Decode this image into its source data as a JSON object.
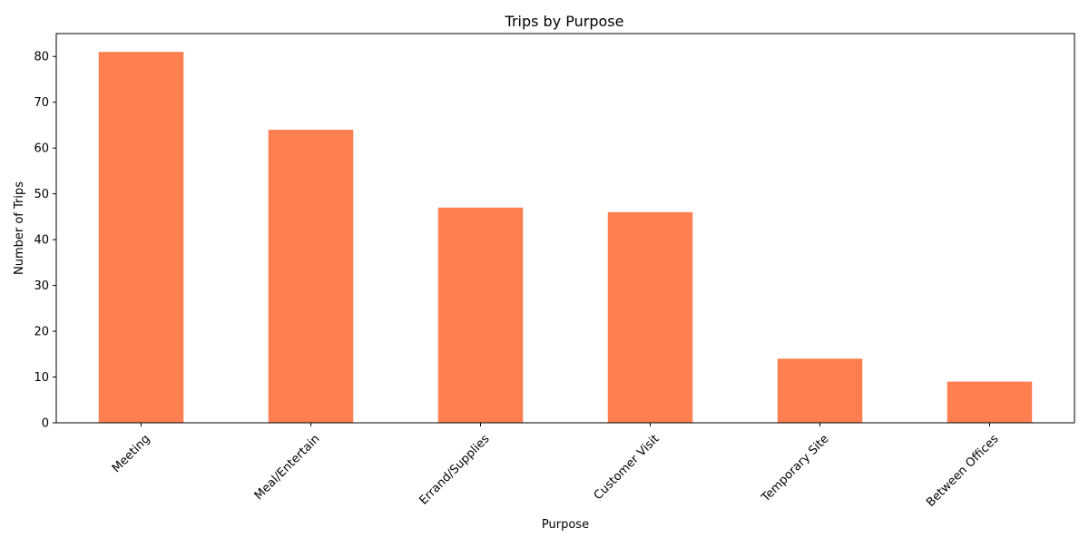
{
  "chart_data": {
    "type": "bar",
    "title": "Trips by Purpose",
    "xlabel": "Purpose",
    "ylabel": "Number of Trips",
    "categories": [
      "Meeting",
      "Meal/Entertain",
      "Errand/Supplies",
      "Customer Visit",
      "Temporary Site",
      "Between Offices"
    ],
    "values": [
      81,
      64,
      47,
      46,
      14,
      9
    ],
    "ylim": [
      0,
      85
    ],
    "yticks": [
      0,
      10,
      20,
      30,
      40,
      50,
      60,
      70,
      80
    ],
    "bar_color": "#FF7F50",
    "grid": false,
    "legend": "none",
    "xtick_rotation_deg": 45
  }
}
